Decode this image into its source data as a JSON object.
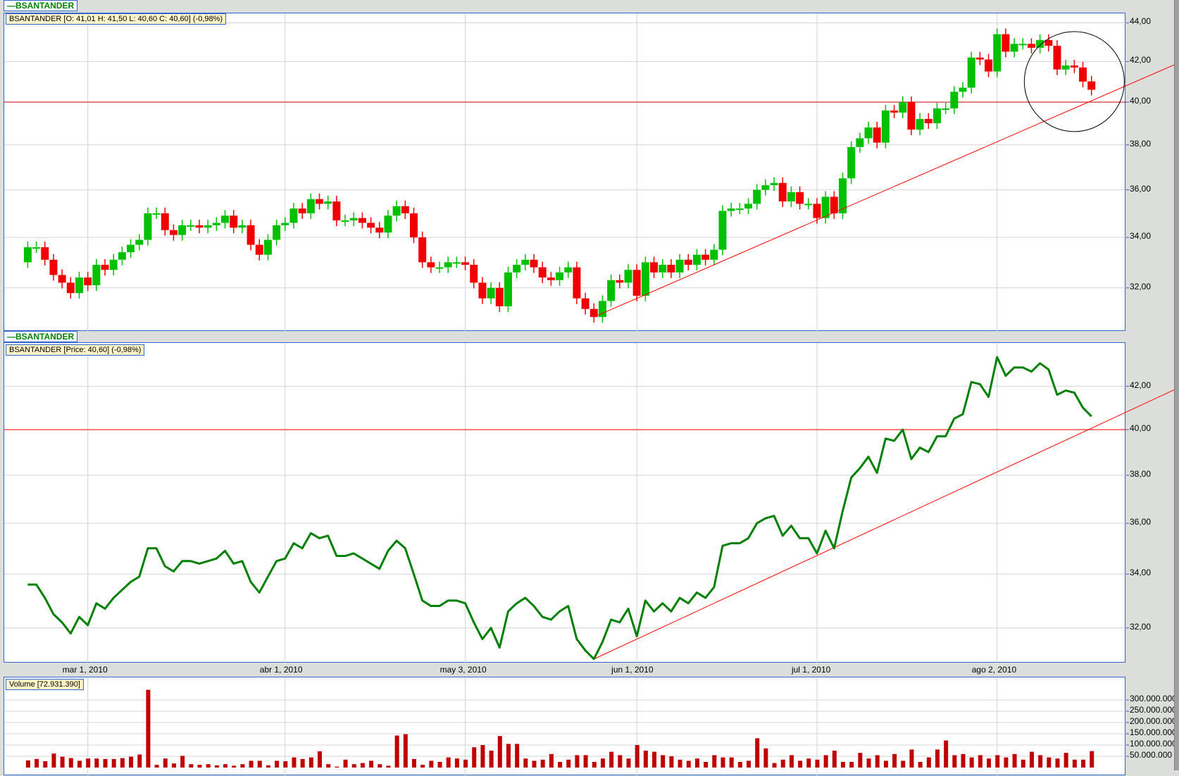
{
  "chart_data": [
    {
      "type": "candlestick",
      "title": "BSANTANDER",
      "info": "BSANTANDER [O: 41,01  H: 41,50  L: 40,60  C: 40,60] (-0,98%)",
      "scale": "log",
      "ylim": [
        30.36,
        44.5
      ],
      "yticks": [
        "32,00",
        "34,00",
        "36,00",
        "38,00",
        "40,00",
        "42,00",
        "44,00"
      ],
      "grid": true,
      "up_color": "#00c000",
      "down_color": "#f00000",
      "horizontal_line": 40.0,
      "trend_line": {
        "from": [
          66,
          30.9
        ],
        "to": [
          134,
          41.9
        ],
        "color": "#ff0000"
      },
      "annotation_circle": {
        "center": [
          122,
          41.0
        ],
        "color": "#000000"
      }
    },
    {
      "type": "line",
      "title": "BSANTANDER",
      "info": "BSANTANDER [Price: 40,60] (-0,98%)",
      "scale": "log",
      "ylim": [
        30.75,
        44.1
      ],
      "yticks": [
        "32,00",
        "34,00",
        "36,00",
        "38,00",
        "40,00",
        "42,00"
      ],
      "grid": true,
      "line_color": "#008000",
      "horizontal_line": 40.0,
      "trend_line": {
        "from": [
          66,
          30.9
        ],
        "to": [
          134,
          41.9
        ],
        "color": "#ff0000"
      }
    },
    {
      "type": "bar",
      "info": "Volume [72.931.390]",
      "ylim": [
        0,
        350000000
      ],
      "yticks": [
        "50.000.000",
        "100.000.000",
        "150.000.000",
        "200.000.000",
        "250.000.000",
        "300.000.000"
      ],
      "bar_color": "#c00000",
      "volume_millions": [
        32,
        38,
        28,
        62,
        48,
        42,
        30,
        40,
        40,
        38,
        38,
        42,
        48,
        58,
        345,
        12,
        40,
        18,
        52,
        15,
        12,
        15,
        10,
        15,
        8,
        15,
        30,
        30,
        10,
        30,
        28,
        45,
        38,
        45,
        72,
        15,
        4,
        35,
        15,
        20,
        30,
        15,
        8,
        142,
        148,
        38,
        12,
        30,
        25,
        45,
        40,
        35,
        90,
        100,
        75,
        140,
        105,
        105,
        40,
        30,
        35,
        60,
        25,
        35,
        55,
        55,
        25,
        40,
        70,
        55,
        40,
        100,
        75,
        70,
        55,
        50,
        35,
        30,
        40,
        25,
        55,
        45,
        45,
        25,
        30,
        130,
        85,
        20,
        35,
        55,
        30,
        40,
        35,
        55,
        75,
        25,
        25,
        65,
        40,
        55,
        30,
        60,
        30,
        80,
        25,
        45,
        80,
        120,
        55,
        60,
        45,
        55,
        40,
        55,
        45,
        60,
        35,
        70,
        55,
        45,
        40,
        65,
        35,
        35,
        73
      ]
    }
  ],
  "series": {
    "open": [
      33.0,
      33.6,
      33.6,
      33.1,
      32.5,
      32.2,
      31.8,
      32.4,
      32.1,
      32.9,
      32.7,
      33.1,
      33.4,
      33.7,
      33.9,
      35.0,
      35.0,
      34.3,
      34.1,
      34.5,
      34.5,
      34.4,
      34.5,
      34.6,
      34.9,
      34.4,
      34.5,
      33.7,
      33.3,
      33.9,
      34.5,
      34.6,
      35.2,
      35.0,
      35.6,
      35.4,
      35.5,
      34.7,
      34.7,
      34.8,
      34.6,
      34.4,
      34.2,
      34.9,
      35.3,
      35.0,
      34.0,
      33.0,
      32.8,
      32.8,
      33.0,
      33.0,
      32.9,
      32.2,
      31.6,
      32.0,
      31.3,
      32.6,
      32.9,
      33.1,
      32.8,
      32.4,
      32.3,
      32.6,
      32.8,
      31.6,
      31.2,
      30.9,
      31.5,
      32.3,
      32.2,
      32.7,
      31.7,
      33.0,
      32.6,
      32.9,
      32.6,
      33.1,
      32.9,
      33.3,
      33.1,
      33.5,
      35.1,
      35.2,
      35.2,
      35.4,
      36.0,
      36.2,
      36.3,
      35.5,
      35.9,
      35.4,
      35.4,
      34.8,
      35.7,
      35.0,
      36.5,
      37.9,
      38.3,
      38.8,
      38.1,
      39.6,
      39.5,
      40.0,
      38.7,
      39.2,
      39.0,
      39.7,
      39.7,
      40.5,
      40.7,
      42.2,
      42.1,
      41.5,
      43.4,
      42.5,
      42.9,
      42.9,
      42.7,
      43.1,
      42.8,
      41.6,
      41.8,
      41.7,
      41.01
    ],
    "close": [
      33.6,
      33.6,
      33.1,
      32.5,
      32.2,
      31.8,
      32.4,
      32.1,
      32.9,
      32.7,
      33.1,
      33.4,
      33.7,
      33.9,
      35.0,
      35.0,
      34.3,
      34.1,
      34.5,
      34.5,
      34.4,
      34.5,
      34.6,
      34.9,
      34.4,
      34.5,
      33.7,
      33.3,
      33.9,
      34.5,
      34.6,
      35.2,
      35.0,
      35.6,
      35.4,
      35.5,
      34.7,
      34.7,
      34.8,
      34.6,
      34.4,
      34.2,
      34.9,
      35.3,
      35.0,
      34.0,
      33.0,
      32.8,
      32.8,
      33.0,
      33.0,
      32.9,
      32.2,
      31.6,
      32.0,
      31.3,
      32.6,
      32.9,
      33.1,
      32.8,
      32.4,
      32.3,
      32.6,
      32.8,
      31.6,
      31.2,
      30.9,
      31.5,
      32.3,
      32.2,
      32.7,
      31.7,
      33.0,
      32.6,
      32.9,
      32.6,
      33.1,
      32.9,
      33.3,
      33.1,
      33.5,
      35.1,
      35.2,
      35.2,
      35.4,
      36.0,
      36.2,
      36.3,
      35.5,
      35.9,
      35.4,
      35.4,
      34.8,
      35.7,
      35.0,
      36.5,
      37.9,
      38.3,
      38.8,
      38.1,
      39.6,
      39.5,
      40.0,
      38.7,
      39.2,
      39.0,
      39.7,
      39.7,
      40.5,
      40.7,
      42.2,
      42.1,
      41.5,
      43.4,
      42.5,
      42.9,
      42.9,
      42.7,
      43.1,
      42.8,
      41.6,
      41.8,
      41.7,
      41.0,
      40.6
    ]
  },
  "xaxis": {
    "ticks": [
      {
        "index": 7,
        "label": "mar 1, 2010"
      },
      {
        "index": 30,
        "label": "abr 1, 2010"
      },
      {
        "index": 51,
        "label": "may 3, 2010"
      },
      {
        "index": 71,
        "label": "jun 1, 2010"
      },
      {
        "index": 92,
        "label": "jul 1, 2010"
      },
      {
        "index": 113,
        "label": "ago 2, 2010"
      }
    ]
  }
}
